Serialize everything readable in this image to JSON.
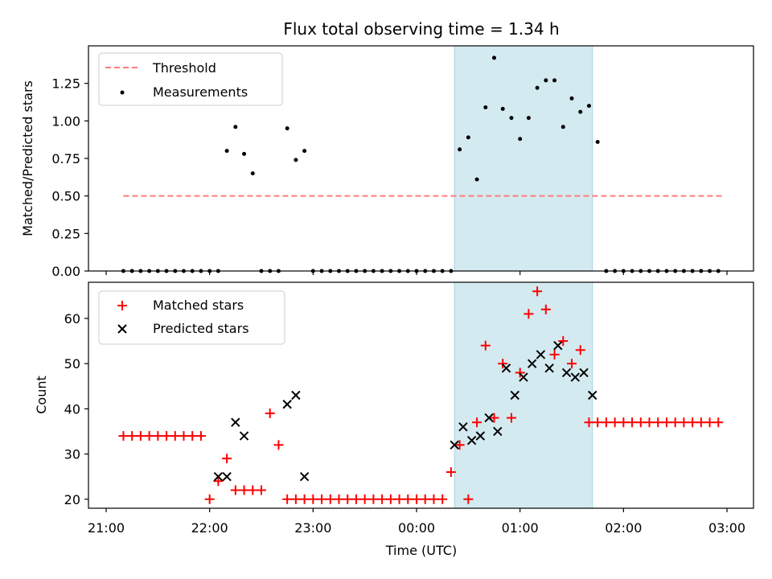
{
  "chart_data": [
    {
      "type": "scatter",
      "title": "Flux total observing time = 1.34 h",
      "xlabel": "",
      "ylabel": "Matched/Predicted stars",
      "ylim": [
        0,
        1.5
      ],
      "yticks": [
        "0.00",
        "0.25",
        "0.50",
        "0.75",
        "1.00",
        "1.25"
      ],
      "ytick_values": [
        0,
        0.25,
        0.5,
        0.75,
        1.0,
        1.25
      ],
      "legend_position": "top-left",
      "highlight_span": {
        "start": "00:22",
        "end": "01:42",
        "color": "#d3eaf0"
      },
      "series": [
        {
          "name": "Threshold",
          "style": "dashed-line",
          "color": "#ff7b7b",
          "x": [
            "21:10",
            "02:58"
          ],
          "y": [
            0.5,
            0.5
          ]
        },
        {
          "name": "Measurements",
          "style": "dot",
          "color": "#000000",
          "x": [
            "21:10",
            "21:15",
            "21:20",
            "21:25",
            "21:30",
            "21:35",
            "21:40",
            "21:45",
            "21:50",
            "21:55",
            "22:00",
            "22:05",
            "22:10",
            "22:15",
            "22:20",
            "22:25",
            "22:30",
            "22:35",
            "22:40",
            "22:45",
            "22:50",
            "22:55",
            "23:00",
            "23:05",
            "23:10",
            "23:15",
            "23:20",
            "23:25",
            "23:30",
            "23:35",
            "23:40",
            "23:45",
            "23:50",
            "23:55",
            "00:00",
            "00:05",
            "00:10",
            "00:15",
            "00:20",
            "00:25",
            "00:30",
            "00:35",
            "00:40",
            "00:45",
            "00:50",
            "00:55",
            "01:00",
            "01:05",
            "01:10",
            "01:15",
            "01:20",
            "01:25",
            "01:30",
            "01:35",
            "01:40",
            "01:45",
            "01:50",
            "01:55",
            "02:00",
            "02:05",
            "02:10",
            "02:15",
            "02:20",
            "02:25",
            "02:30",
            "02:35",
            "02:40",
            "02:45",
            "02:50",
            "02:55"
          ],
          "y": [
            0,
            0,
            0,
            0,
            0,
            0,
            0,
            0,
            0,
            0,
            0,
            0,
            0.8,
            0.96,
            0.78,
            0.65,
            0,
            0,
            0,
            0.95,
            0.74,
            0.8,
            0,
            0,
            0,
            0,
            0,
            0,
            0,
            0,
            0,
            0,
            0,
            0,
            0,
            0,
            0,
            0,
            0,
            0.81,
            0.89,
            0.61,
            1.09,
            1.42,
            1.08,
            1.02,
            0.88,
            1.02,
            1.22,
            1.27,
            1.27,
            0.96,
            1.15,
            1.06,
            1.1,
            0.86,
            0,
            0,
            0,
            0,
            0,
            0,
            0,
            0,
            0,
            0,
            0,
            0,
            0,
            0
          ]
        }
      ]
    },
    {
      "type": "scatter",
      "title": "",
      "xlabel": "Time (UTC)",
      "ylabel": "Count",
      "ylim": [
        18,
        68
      ],
      "yticks": [
        "20",
        "30",
        "40",
        "50",
        "60"
      ],
      "ytick_values": [
        20,
        30,
        40,
        50,
        60
      ],
      "xticks": [
        "21:00",
        "22:00",
        "23:00",
        "00:00",
        "01:00",
        "02:00",
        "03:00"
      ],
      "legend_position": "top-left",
      "highlight_span": {
        "start": "00:22",
        "end": "01:42",
        "color": "#d3eaf0"
      },
      "series": [
        {
          "name": "Matched stars",
          "marker": "plus",
          "color": "#ff0000",
          "x": [
            "21:10",
            "21:15",
            "21:20",
            "21:25",
            "21:30",
            "21:35",
            "21:40",
            "21:45",
            "21:50",
            "21:55",
            "22:00",
            "22:05",
            "22:10",
            "22:15",
            "22:20",
            "22:25",
            "22:30",
            "22:35",
            "22:40",
            "22:45",
            "22:50",
            "22:55",
            "23:00",
            "23:05",
            "23:10",
            "23:15",
            "23:20",
            "23:25",
            "23:30",
            "23:35",
            "23:40",
            "23:45",
            "23:50",
            "23:55",
            "00:00",
            "00:05",
            "00:10",
            "00:15",
            "00:20",
            "00:25",
            "00:30",
            "00:35",
            "00:40",
            "00:45",
            "00:50",
            "00:55",
            "01:00",
            "01:05",
            "01:10",
            "01:15",
            "01:20",
            "01:25",
            "01:30",
            "01:35",
            "01:40",
            "01:45",
            "01:50",
            "01:55",
            "02:00",
            "02:05",
            "02:10",
            "02:15",
            "02:20",
            "02:25",
            "02:30",
            "02:35",
            "02:40",
            "02:45",
            "02:50",
            "02:55"
          ],
          "y": [
            34,
            34,
            34,
            34,
            34,
            34,
            34,
            34,
            34,
            34,
            20,
            24,
            29,
            22,
            22,
            22,
            22,
            39,
            32,
            20,
            20,
            20,
            20,
            20,
            20,
            20,
            20,
            20,
            20,
            20,
            20,
            20,
            20,
            20,
            20,
            20,
            20,
            20,
            26,
            32,
            20,
            37,
            54,
            38,
            50,
            38,
            48,
            61,
            66,
            62,
            52,
            55,
            50,
            53,
            37,
            37,
            37,
            37,
            37,
            37,
            37,
            37,
            37,
            37,
            37,
            37,
            37,
            37,
            37,
            37
          ]
        },
        {
          "name": "Predicted stars",
          "marker": "x",
          "color": "#000000",
          "x": [
            "22:05",
            "22:10",
            "22:15",
            "22:20",
            "22:45",
            "22:50",
            "22:55",
            "00:22",
            "00:27",
            "00:32",
            "00:37",
            "00:42",
            "00:47",
            "00:52",
            "00:57",
            "01:02",
            "01:07",
            "01:12",
            "01:17",
            "01:22",
            "01:27",
            "01:32",
            "01:37",
            "01:42"
          ],
          "y": [
            25,
            25,
            37,
            34,
            41,
            43,
            25,
            32,
            36,
            33,
            34,
            38,
            35,
            49,
            43,
            47,
            50,
            52,
            49,
            54,
            48,
            47,
            48,
            43
          ]
        }
      ]
    }
  ]
}
